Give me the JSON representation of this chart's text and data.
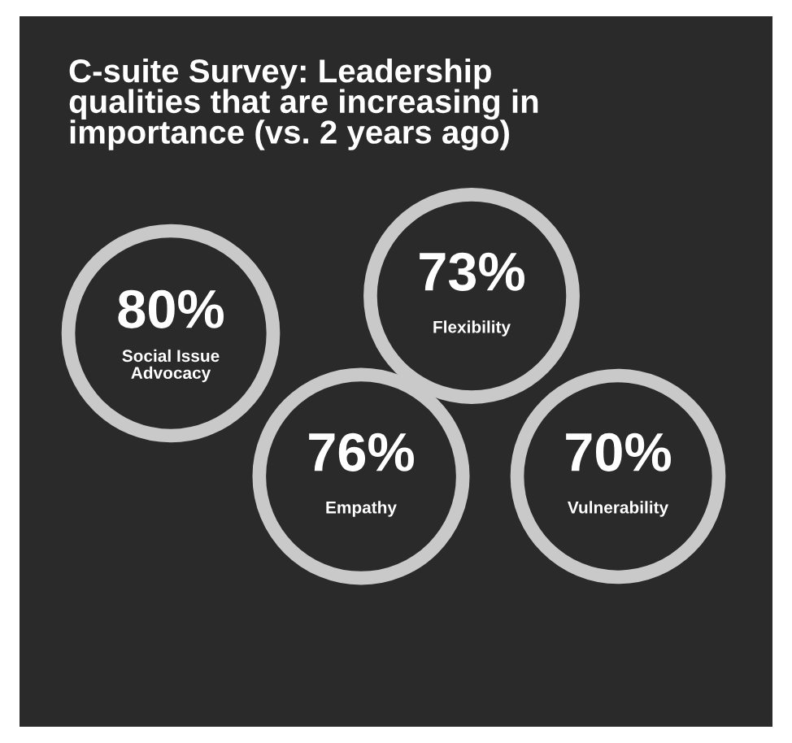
{
  "chart_data": {
    "type": "other",
    "title": "C-suite Survey: Leadership\nqualities that are increasing in\nimportance (vs. 2 years ago)",
    "categories": [
      "Social Issue\nAdvocacy",
      "Flexibility",
      "Empathy",
      "Vulnerability"
    ],
    "values": [
      80,
      73,
      76,
      70
    ],
    "value_labels": [
      "80%",
      "73%",
      "76%",
      "70%"
    ],
    "colors": [
      "#c9c9c9",
      "#c9c9c9",
      "#c9c9c9",
      "#c9c9c9"
    ]
  }
}
